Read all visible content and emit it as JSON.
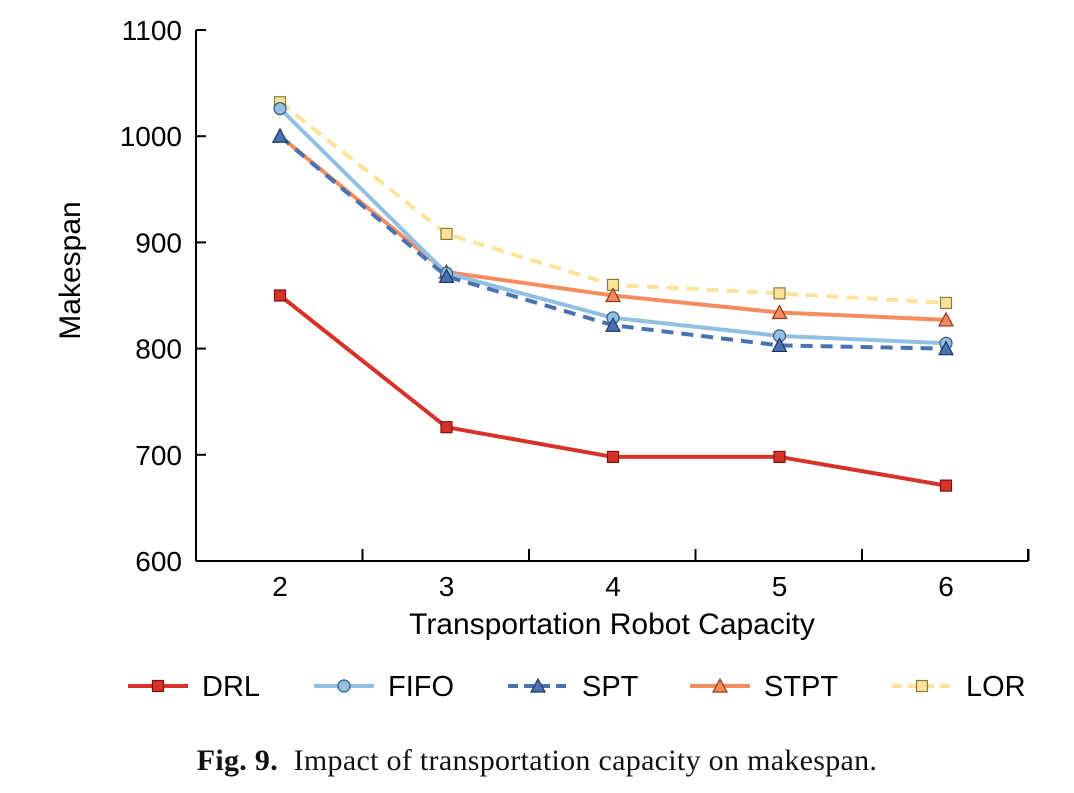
{
  "chart_data": {
    "type": "line",
    "x": [
      2,
      3,
      4,
      5,
      6
    ],
    "xlabel": "Transportation Robot Capacity",
    "ylabel": "Makespan",
    "ylim": [
      600,
      1100
    ],
    "yticks": [
      600,
      700,
      800,
      900,
      1000,
      1100
    ],
    "grid": false,
    "legend_position": "bottom",
    "series": [
      {
        "name": "DRL",
        "values": [
          850,
          726,
          698,
          698,
          671
        ],
        "color": "#d7322a",
        "dash": false,
        "marker": "square"
      },
      {
        "name": "FIFO",
        "values": [
          1026,
          871,
          829,
          812,
          805
        ],
        "color": "#92c0e2",
        "dash": false,
        "marker": "circle"
      },
      {
        "name": "SPT",
        "values": [
          1000,
          868,
          822,
          803,
          800
        ],
        "color": "#4a72b1",
        "dash": true,
        "marker": "triangle"
      },
      {
        "name": "STPT",
        "values": [
          1000,
          872,
          850,
          834,
          827
        ],
        "color": "#f58c5e",
        "dash": false,
        "marker": "triangle"
      },
      {
        "name": "LOR",
        "values": [
          1032,
          908,
          860,
          852,
          843
        ],
        "color": "#fbe39a",
        "dash": true,
        "marker": "square"
      }
    ]
  },
  "caption": {
    "label": "Fig. 9.",
    "text": "Impact of transportation capacity on makespan."
  }
}
